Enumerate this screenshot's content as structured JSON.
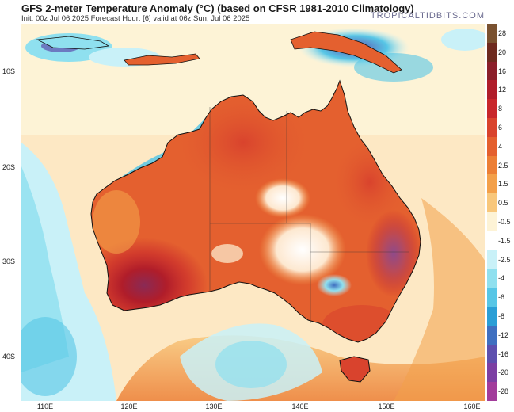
{
  "title": "GFS 2-meter Temperature Anomaly (°C) (based on CFSR 1981-2010 Climatology)",
  "subtitle": "Init: 00z Jul 06 2025   Forecast Hour: [6]   valid at 06z Sun, Jul 06 2025",
  "brand": "TROPICALTIDBITS.COM",
  "latitude_labels": [
    "10S",
    "20S",
    "30S",
    "40S"
  ],
  "longitude_labels": [
    "110E",
    "120E",
    "130E",
    "140E",
    "150E",
    "160E"
  ],
  "colorbar": {
    "labels": [
      "28",
      "20",
      "16",
      "12",
      "8",
      "6",
      "4",
      "2.5",
      "1.5",
      "0.5",
      "-0.5",
      "-1.5",
      "-2.5",
      "-4",
      "-6",
      "-8",
      "-12",
      "-16",
      "-20",
      "-28"
    ],
    "colors": [
      "#7a5230",
      "#6e2a1f",
      "#8b1f2a",
      "#b01d2a",
      "#c8262b",
      "#d9432d",
      "#e4602f",
      "#ec7f36",
      "#f3a04a",
      "#f8c77b",
      "#fdf3d6",
      "#ffffff",
      "#c9f1f8",
      "#8fe0ef",
      "#57c6e6",
      "#2a9ed6",
      "#3f6fc0",
      "#5d4fae",
      "#7c3fa3",
      "#a23c9b"
    ]
  },
  "colors": {
    "land_warm": "#e4602f",
    "land_hot": "#c8262b",
    "ocean_neutral": "#fde8c4",
    "ocean_cold": "#8fe0ef",
    "coastline": "#111111"
  }
}
